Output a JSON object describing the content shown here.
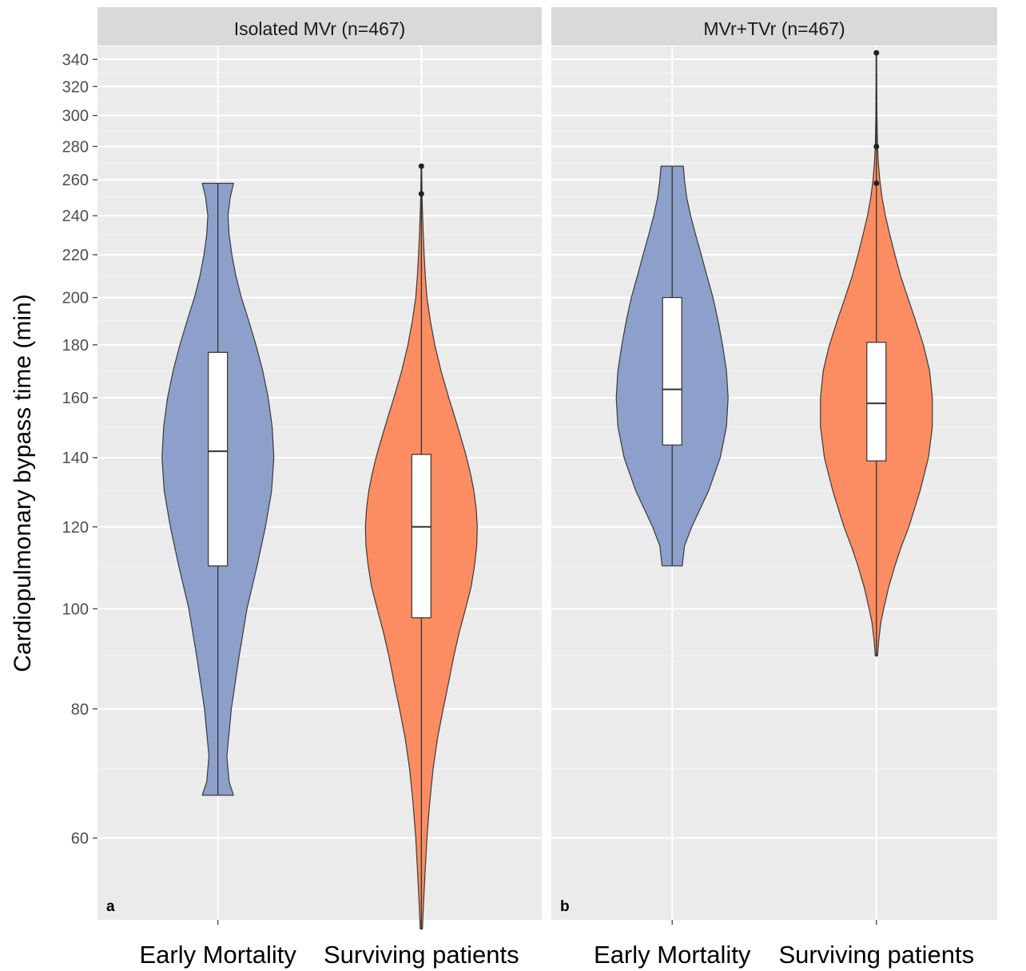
{
  "chart_data": {
    "type": "violin",
    "ylabel": "Cardiopulmonary bypass time (min)",
    "y_scale": "log",
    "yticks": [
      60,
      80,
      100,
      120,
      140,
      160,
      180,
      200,
      220,
      240,
      260,
      280,
      300,
      320,
      340
    ],
    "ylim": [
      50,
      350
    ],
    "categories": [
      "Early Mortality",
      "Surviving patients"
    ],
    "colors": {
      "Early Mortality": "#8da0cb",
      "Surviving patients": "#fc8d62"
    },
    "panels": [
      {
        "strip": "Isolated MVr (n=467)",
        "tag": "a",
        "groups": [
          {
            "category": "Early Mortality",
            "min": 66,
            "q1": 110,
            "median": 142,
            "q3": 177,
            "max": 258,
            "outliers": [],
            "density": [
              [
                66,
                0.28
              ],
              [
                68,
                0.2
              ],
              [
                72,
                0.16
              ],
              [
                80,
                0.24
              ],
              [
                90,
                0.38
              ],
              [
                100,
                0.52
              ],
              [
                110,
                0.7
              ],
              [
                120,
                0.85
              ],
              [
                130,
                0.96
              ],
              [
                140,
                1.0
              ],
              [
                150,
                0.97
              ],
              [
                160,
                0.9
              ],
              [
                170,
                0.8
              ],
              [
                180,
                0.68
              ],
              [
                190,
                0.55
              ],
              [
                200,
                0.42
              ],
              [
                210,
                0.32
              ],
              [
                220,
                0.25
              ],
              [
                230,
                0.2
              ],
              [
                240,
                0.18
              ],
              [
                250,
                0.22
              ],
              [
                258,
                0.28
              ]
            ]
          },
          {
            "category": "Surviving patients",
            "min": 49,
            "q1": 98,
            "median": 120,
            "q3": 141,
            "max": 268,
            "outliers": [
              252,
              268
            ],
            "density": [
              [
                49,
                0.02
              ],
              [
                52,
                0.04
              ],
              [
                56,
                0.07
              ],
              [
                60,
                0.1
              ],
              [
                65,
                0.15
              ],
              [
                70,
                0.21
              ],
              [
                75,
                0.29
              ],
              [
                80,
                0.39
              ],
              [
                85,
                0.49
              ],
              [
                90,
                0.58
              ],
              [
                95,
                0.68
              ],
              [
                100,
                0.79
              ],
              [
                105,
                0.89
              ],
              [
                110,
                0.95
              ],
              [
                115,
                0.99
              ],
              [
                120,
                1.0
              ],
              [
                125,
                0.98
              ],
              [
                130,
                0.94
              ],
              [
                135,
                0.88
              ],
              [
                140,
                0.81
              ],
              [
                145,
                0.73
              ],
              [
                150,
                0.65
              ],
              [
                155,
                0.57
              ],
              [
                160,
                0.49
              ],
              [
                170,
                0.35
              ],
              [
                180,
                0.24
              ],
              [
                190,
                0.16
              ],
              [
                200,
                0.1
              ],
              [
                210,
                0.07
              ],
              [
                220,
                0.05
              ],
              [
                230,
                0.035
              ],
              [
                240,
                0.022
              ],
              [
                250,
                0.012
              ],
              [
                260,
                0.008
              ],
              [
                268,
                0.005
              ]
            ]
          }
        ]
      },
      {
        "strip": "MVr+TVr (n=467)",
        "tag": "b",
        "groups": [
          {
            "category": "Early Mortality",
            "min": 110,
            "q1": 144,
            "median": 163,
            "q3": 200,
            "max": 268,
            "outliers": [],
            "density": [
              [
                110,
                0.18
              ],
              [
                115,
                0.22
              ],
              [
                120,
                0.35
              ],
              [
                130,
                0.65
              ],
              [
                140,
                0.86
              ],
              [
                150,
                0.97
              ],
              [
                160,
                1.0
              ],
              [
                170,
                0.97
              ],
              [
                180,
                0.9
              ],
              [
                190,
                0.82
              ],
              [
                200,
                0.73
              ],
              [
                210,
                0.62
              ],
              [
                220,
                0.52
              ],
              [
                230,
                0.42
              ],
              [
                240,
                0.33
              ],
              [
                250,
                0.26
              ],
              [
                260,
                0.22
              ],
              [
                268,
                0.2
              ]
            ]
          },
          {
            "category": "Surviving patients",
            "min": 90,
            "q1": 139,
            "median": 158,
            "q3": 181,
            "max": 345,
            "outliers": [
              258,
              280,
              345
            ],
            "density": [
              [
                90,
                0.02
              ],
              [
                93,
                0.04
              ],
              [
                97,
                0.08
              ],
              [
                100,
                0.13
              ],
              [
                105,
                0.22
              ],
              [
                110,
                0.33
              ],
              [
                115,
                0.45
              ],
              [
                120,
                0.58
              ],
              [
                130,
                0.78
              ],
              [
                140,
                0.93
              ],
              [
                150,
                1.0
              ],
              [
                160,
                1.0
              ],
              [
                170,
                0.95
              ],
              [
                180,
                0.84
              ],
              [
                190,
                0.7
              ],
              [
                200,
                0.56
              ],
              [
                210,
                0.43
              ],
              [
                220,
                0.33
              ],
              [
                230,
                0.24
              ],
              [
                240,
                0.16
              ],
              [
                250,
                0.1
              ],
              [
                260,
                0.06
              ],
              [
                270,
                0.035
              ],
              [
                280,
                0.02
              ],
              [
                300,
                0.01
              ],
              [
                320,
                0.007
              ],
              [
                345,
                0.005
              ]
            ]
          }
        ]
      }
    ]
  }
}
